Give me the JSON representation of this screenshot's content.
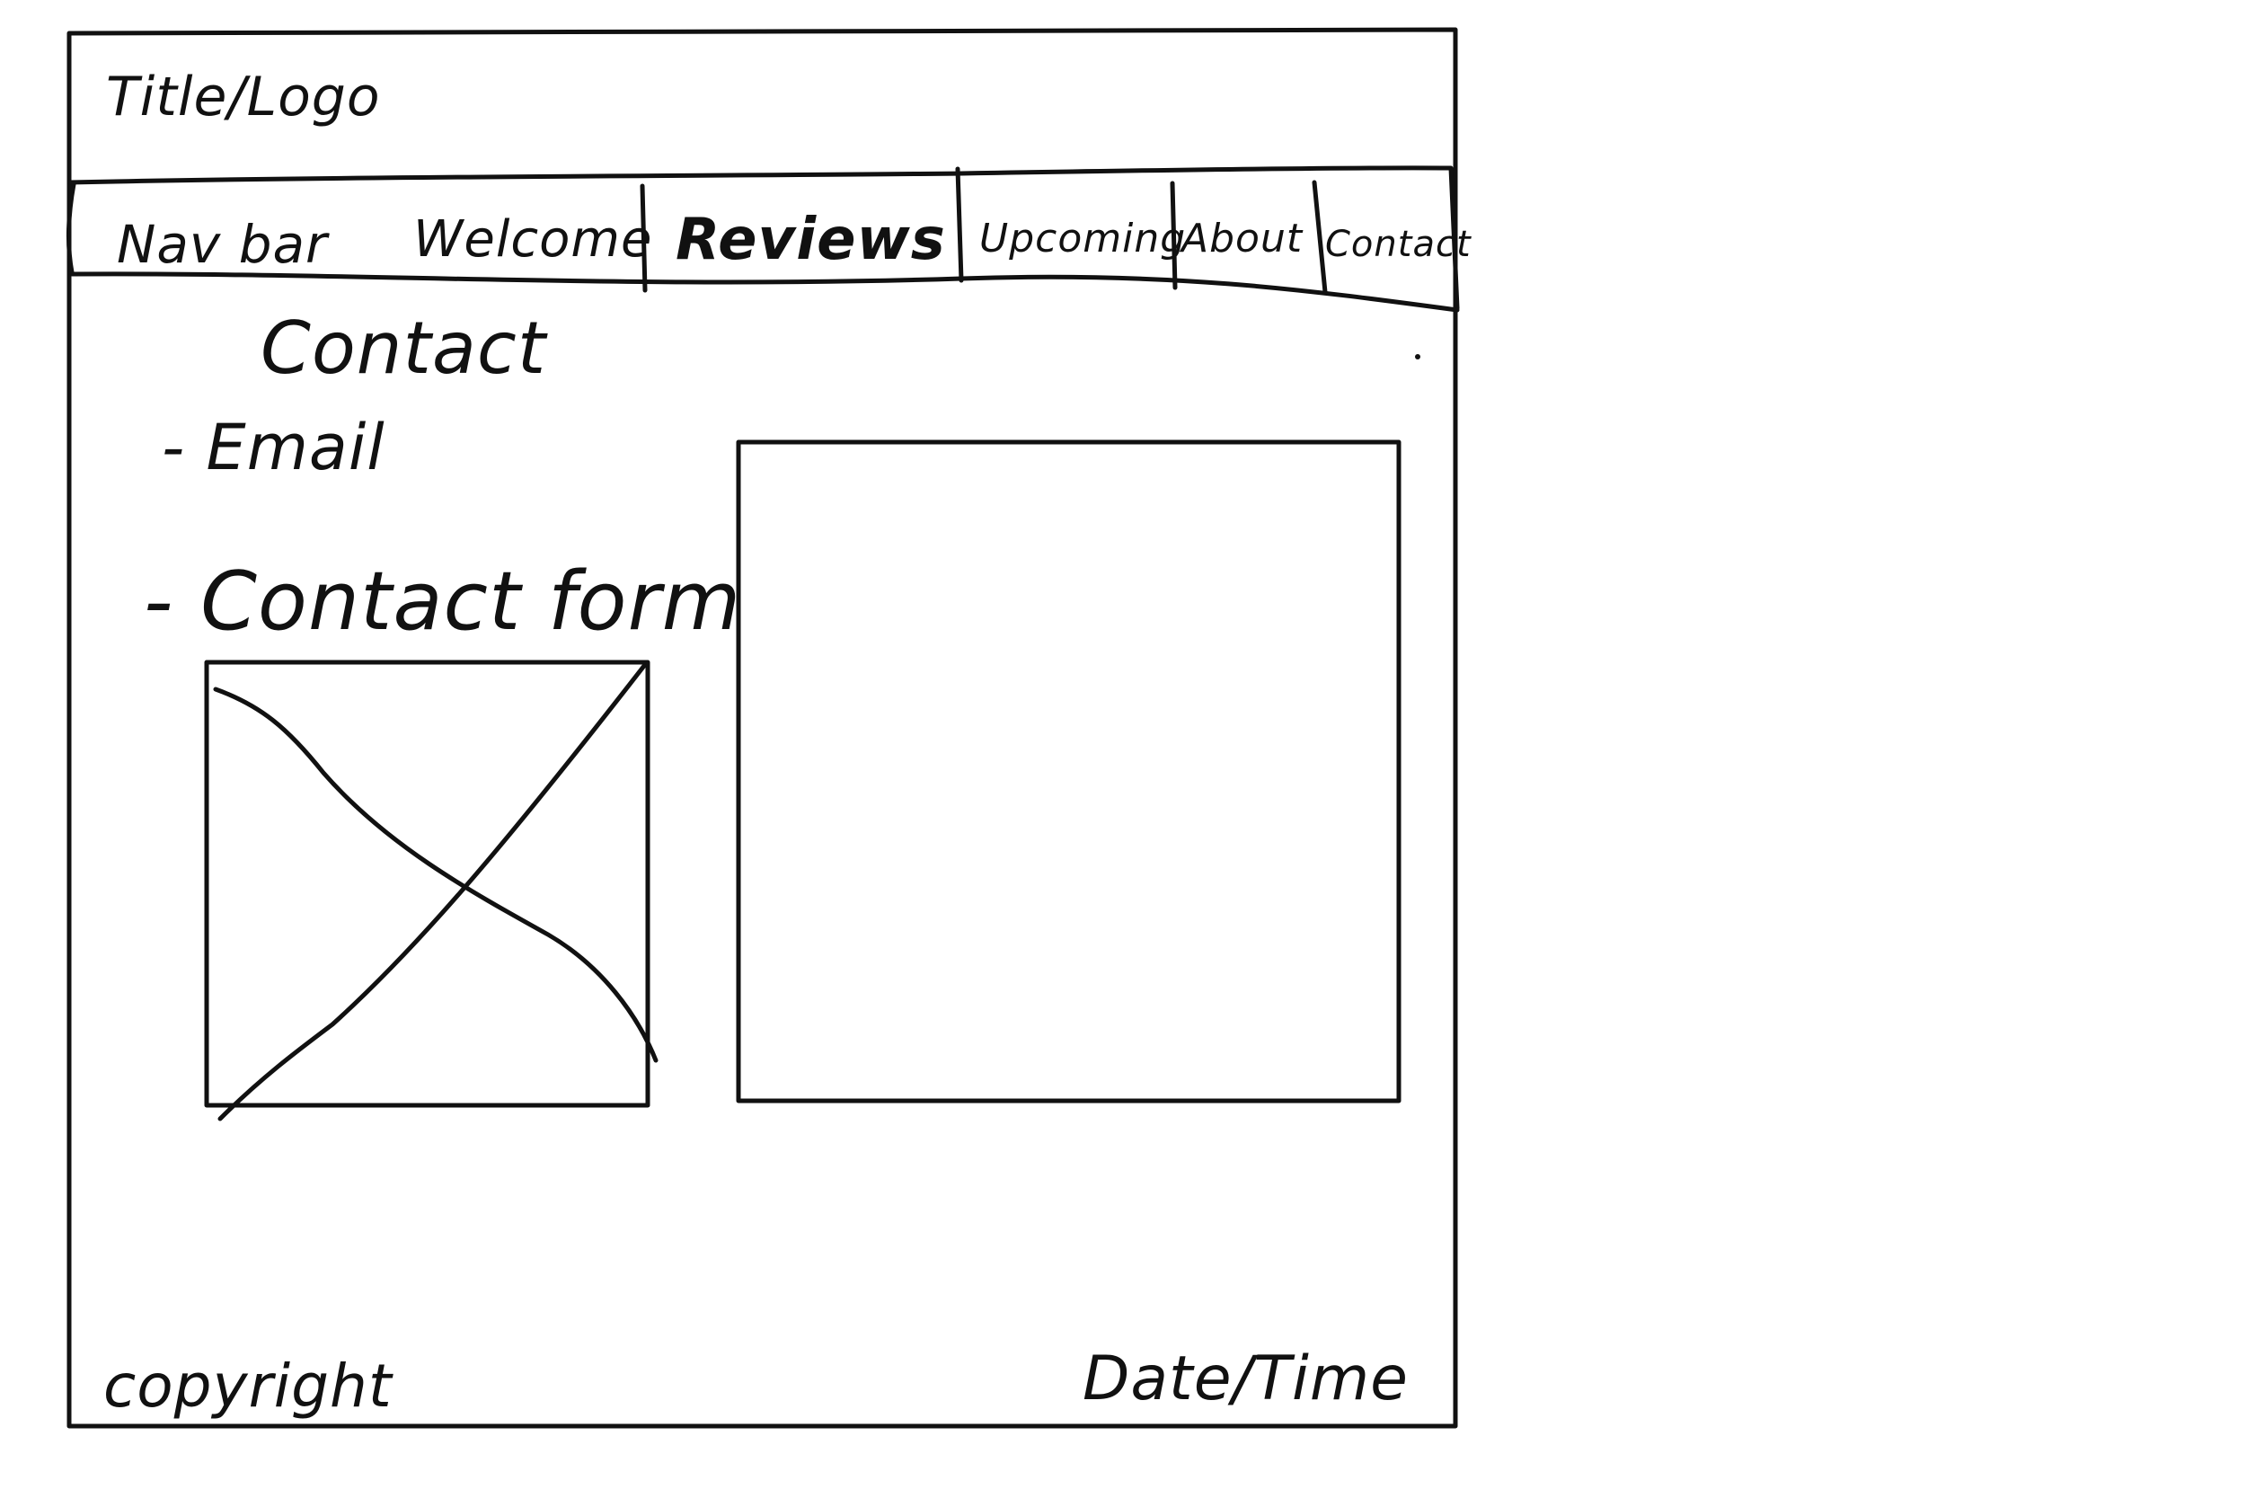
{
  "header": {
    "title": "Title/Logo"
  },
  "nav": {
    "label": "Nav bar",
    "items": [
      "Welcome",
      "Reviews",
      "Upcoming",
      "About",
      "Contact"
    ]
  },
  "content": {
    "heading": "Contact",
    "items": [
      "- Email",
      "- Contact form"
    ]
  },
  "footer": {
    "copyright": "copyright",
    "datetime": "Date/Time"
  },
  "colors": {
    "ink": "#111111",
    "paper": "#ffffff"
  },
  "icons": {
    "image_placeholder": "crossed-box-image-placeholder"
  }
}
